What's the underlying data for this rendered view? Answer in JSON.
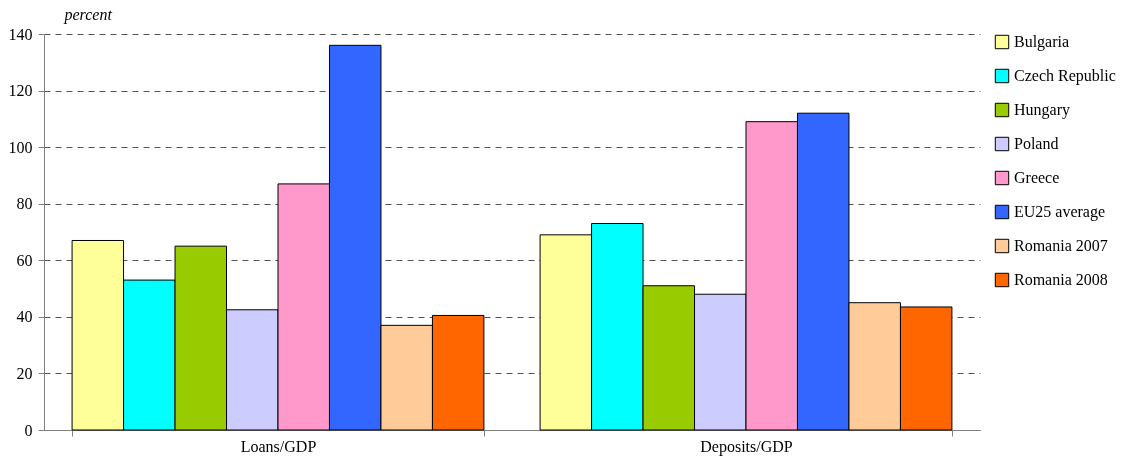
{
  "chart_data": {
    "type": "bar",
    "ylabel": "percent",
    "categories": [
      "Loans/GDP",
      "Deposits/GDP"
    ],
    "series": [
      {
        "name": "Bulgaria",
        "color": "#ffff99",
        "values": [
          67,
          69
        ]
      },
      {
        "name": "Czech Republic",
        "color": "#00ffff",
        "values": [
          53,
          73
        ]
      },
      {
        "name": "Hungary",
        "color": "#99cc00",
        "values": [
          65,
          51
        ]
      },
      {
        "name": "Poland",
        "color": "#ccccff",
        "values": [
          42.5,
          48
        ]
      },
      {
        "name": "Greece",
        "color": "#ff99cc",
        "values": [
          87,
          109
        ]
      },
      {
        "name": "EU25 average",
        "color": "#3366ff",
        "values": [
          136,
          112
        ]
      },
      {
        "name": "Romania 2007",
        "color": "#ffcc99",
        "values": [
          37,
          45
        ]
      },
      {
        "name": "Romania 2008",
        "color": "#ff6600",
        "values": [
          40.5,
          43.5
        ]
      }
    ],
    "ylim": [
      0,
      140
    ],
    "yticks": [
      0,
      20,
      40,
      60,
      80,
      100,
      120,
      140
    ],
    "grid": "y",
    "legend": "right"
  }
}
